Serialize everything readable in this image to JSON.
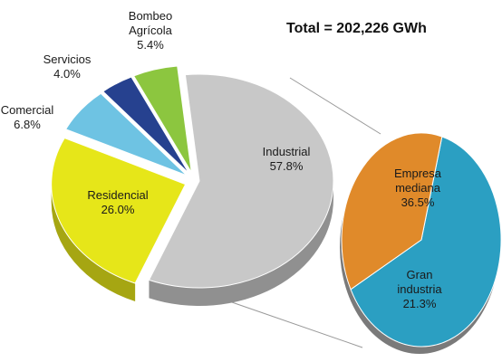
{
  "total_label": "Total = 202,226 GWh",
  "chart_data": [
    {
      "type": "pie",
      "title": "",
      "total_text": "Total = 202,226 GWh",
      "slices": [
        {
          "name": "Industrial",
          "value": 57.8,
          "label": "57.8%",
          "color": "#c8c8c8"
        },
        {
          "name": "Residencial",
          "value": 26.0,
          "label": "26.0%",
          "color": "#e6e619"
        },
        {
          "name": "Comercial",
          "value": 6.8,
          "label": "6.8%",
          "color": "#6ec3e3"
        },
        {
          "name": "Servicios",
          "value": 4.0,
          "label": "4.0%",
          "color": "#26418f"
        },
        {
          "name": "Bombeo Agrícola",
          "name_lines": [
            "Bombeo",
            "Agrícola"
          ],
          "value": 5.4,
          "label": "5.4%",
          "color": "#8cc63f"
        }
      ]
    },
    {
      "type": "pie",
      "title": "",
      "parent": "Industrial",
      "slices": [
        {
          "name": "Empresa mediana",
          "name_lines": [
            "Empresa",
            "mediana"
          ],
          "value": 36.5,
          "label": "36.5%",
          "color": "#2b9fc2"
        },
        {
          "name": "Gran industria",
          "name_lines": [
            "Gran",
            "industria"
          ],
          "value": 21.3,
          "label": "21.3%",
          "color": "#e08a2a"
        }
      ]
    }
  ]
}
